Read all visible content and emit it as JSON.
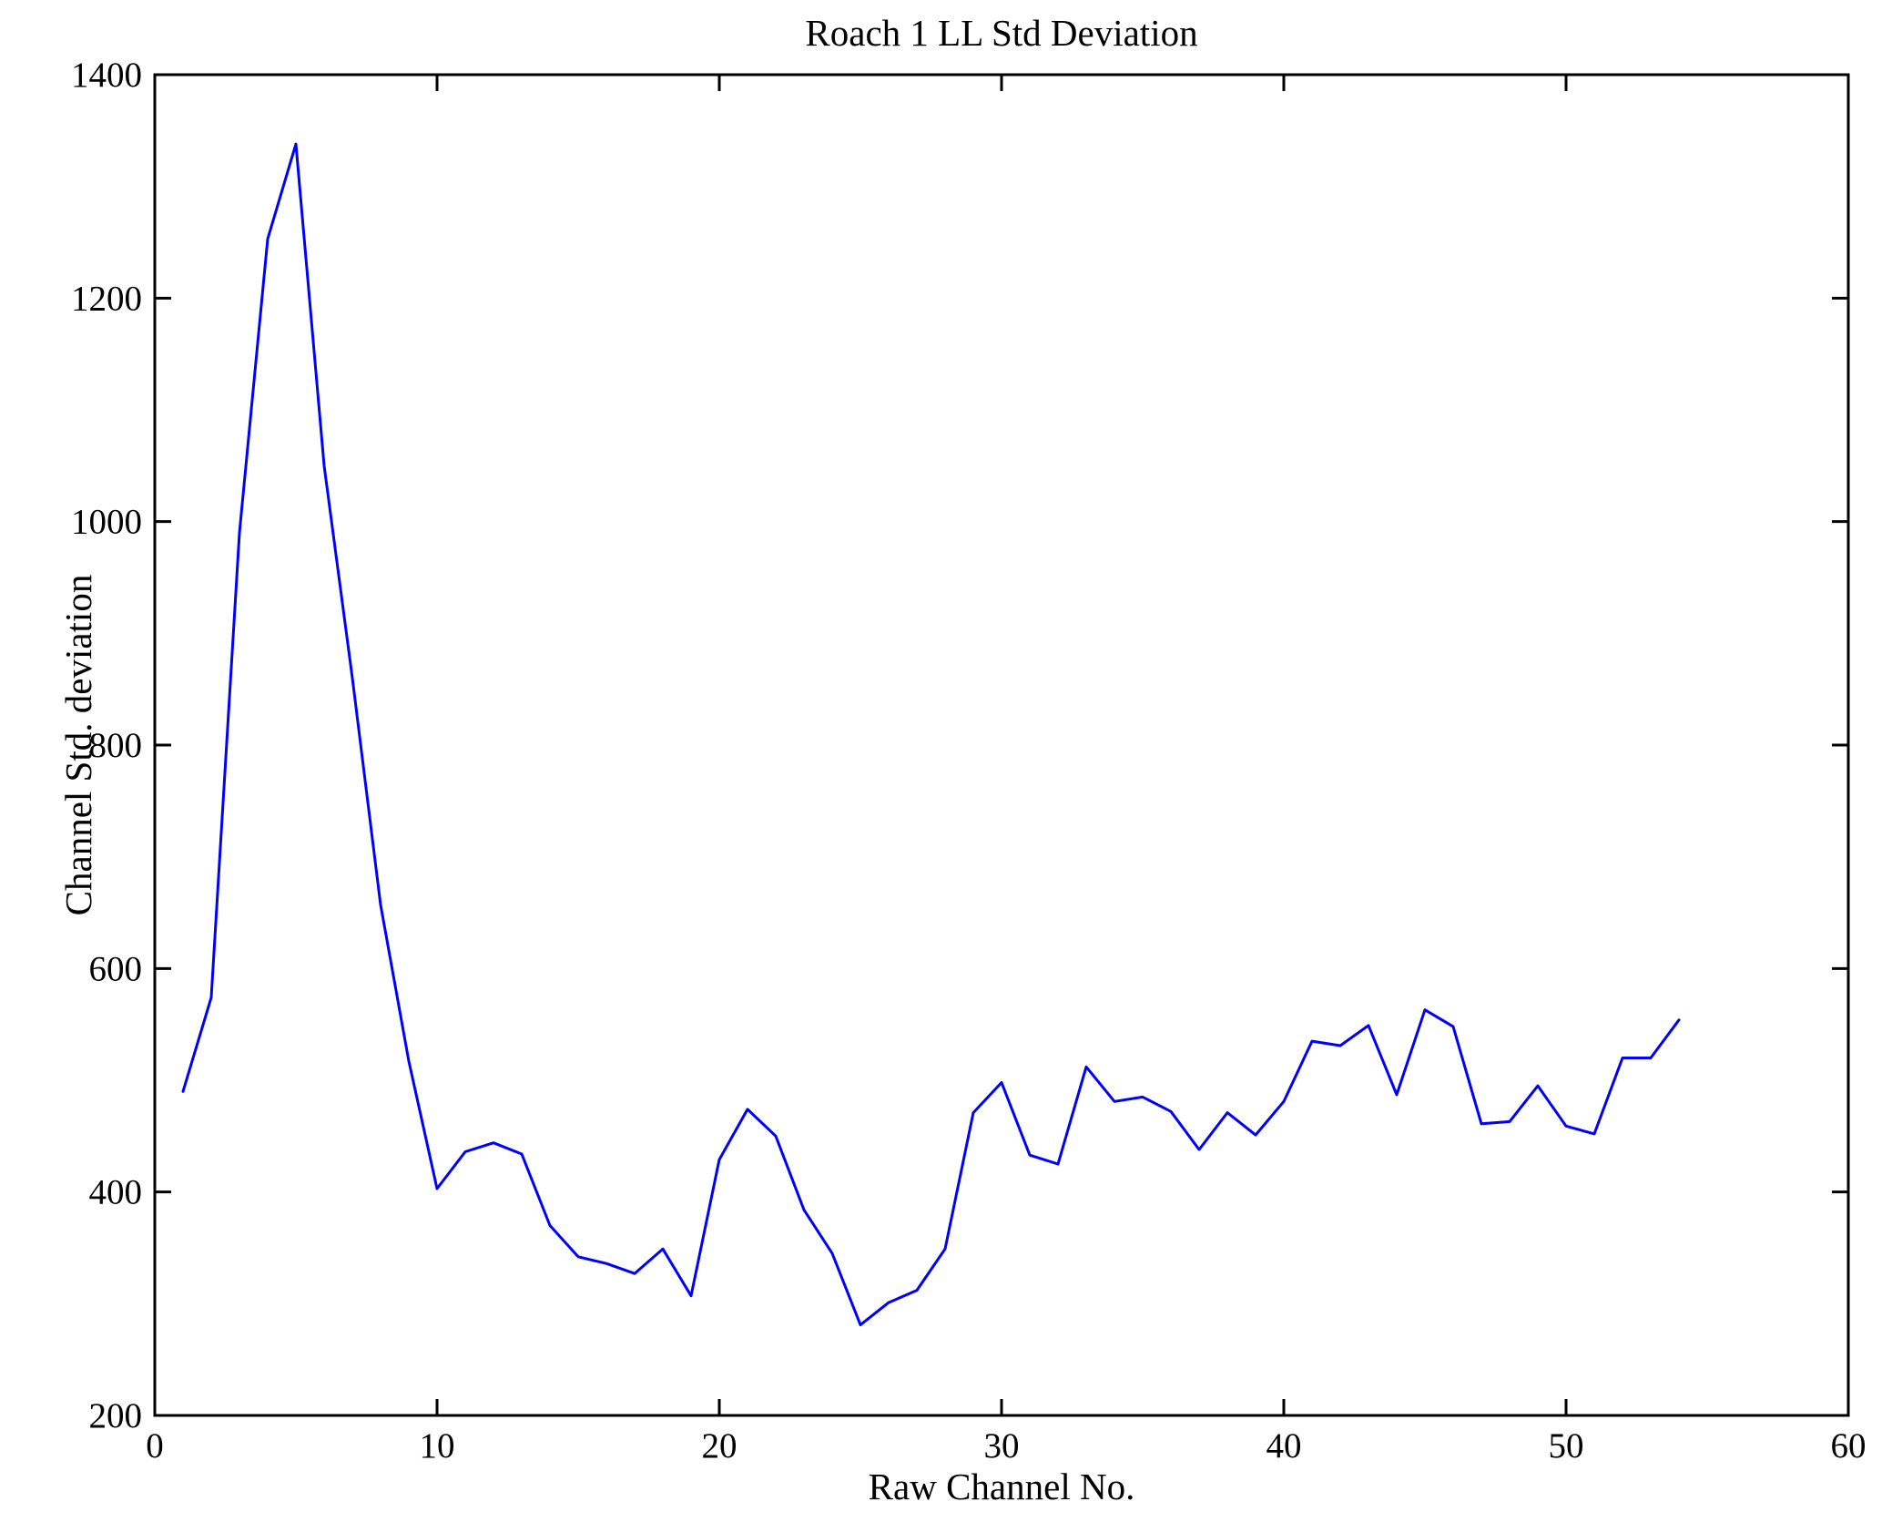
{
  "chart_data": {
    "type": "line",
    "title": "Roach 1 LL Std Deviation",
    "xlabel": "Raw Channel No.",
    "ylabel": "Channel Std. deviation",
    "xlim": [
      0,
      60
    ],
    "ylim": [
      200,
      1400
    ],
    "xticks": [
      0,
      10,
      20,
      30,
      40,
      50,
      60
    ],
    "yticks": [
      200,
      400,
      600,
      800,
      1000,
      1200,
      1400
    ],
    "grid": false,
    "legend": null,
    "line_color": "#0000ff",
    "axis_color": "#000000",
    "background": "#ffffff",
    "x": [
      1,
      2,
      3,
      4,
      5,
      6,
      7,
      8,
      9,
      10,
      11,
      12,
      13,
      14,
      15,
      16,
      17,
      18,
      19,
      20,
      21,
      22,
      23,
      24,
      25,
      26,
      27,
      28,
      29,
      30,
      31,
      32,
      33,
      34,
      35,
      36,
      37,
      38,
      39,
      40,
      41,
      42,
      43,
      44,
      45,
      46,
      47,
      48,
      49,
      50,
      51,
      52,
      53,
      54
    ],
    "values": [
      490,
      574,
      990,
      1253,
      1338,
      1050,
      860,
      657,
      517,
      403,
      436,
      444,
      434,
      370,
      342,
      336,
      327,
      349,
      307,
      429,
      474,
      450,
      384,
      345,
      281,
      301,
      312,
      349,
      471,
      498,
      433,
      425,
      512,
      481,
      485,
      472,
      438,
      471,
      451,
      481,
      535,
      531,
      549,
      487,
      563,
      548,
      461,
      463,
      495,
      459,
      452,
      520,
      520,
      554
    ]
  }
}
